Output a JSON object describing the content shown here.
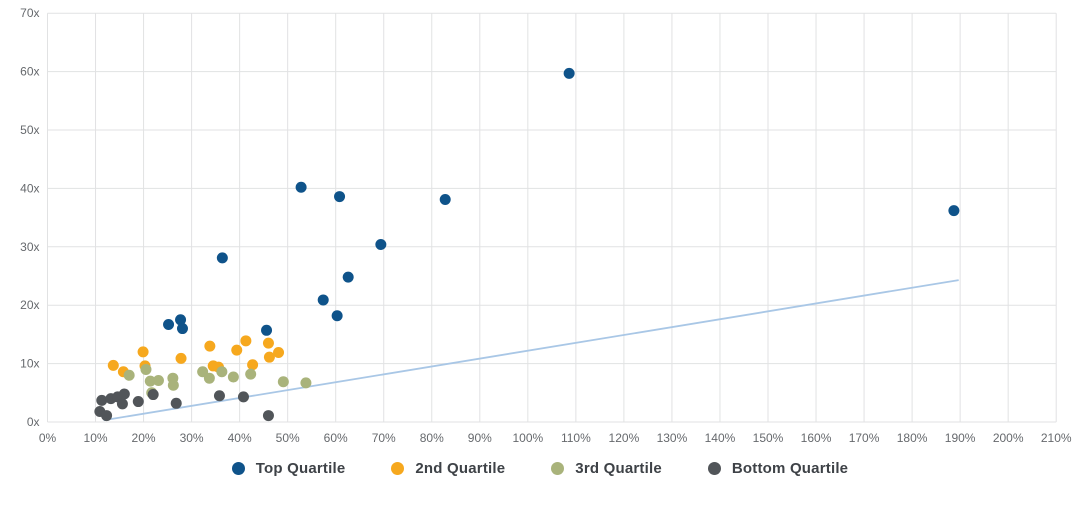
{
  "chart_data": {
    "type": "scatter",
    "title": "",
    "xlabel": "",
    "ylabel": "",
    "grid": true,
    "legend_position": "bottom",
    "x_axis": {
      "min": 0,
      "max": 210,
      "step": 10,
      "unit": "%",
      "tick_labels": [
        "0%",
        "10%",
        "20%",
        "30%",
        "40%",
        "50%",
        "60%",
        "70%",
        "80%",
        "90%",
        "100%",
        "110%",
        "120%",
        "130%",
        "140%",
        "150%",
        "160%",
        "170%",
        "180%",
        "190%",
        "200%",
        "210%"
      ]
    },
    "y_axis": {
      "min": 0,
      "max": 70,
      "step": 10,
      "unit": "x",
      "tick_labels": [
        "0x",
        "10x",
        "20x",
        "30x",
        "40x",
        "50x",
        "60x",
        "70x"
      ]
    },
    "series": [
      {
        "name": "Top Quartile",
        "color": "#0F538A",
        "points": [
          [
            25.2,
            16.7
          ],
          [
            27.7,
            17.5
          ],
          [
            28.1,
            16.0
          ],
          [
            36.4,
            28.1
          ],
          [
            45.6,
            15.7
          ],
          [
            52.8,
            40.2
          ],
          [
            57.4,
            20.9
          ],
          [
            60.3,
            18.2
          ],
          [
            60.8,
            38.6
          ],
          [
            62.6,
            24.8
          ],
          [
            69.4,
            30.4
          ],
          [
            82.8,
            38.1
          ],
          [
            108.6,
            59.7
          ],
          [
            188.7,
            36.2
          ]
        ]
      },
      {
        "name": "2nd Quartile",
        "color": "#F6A81E",
        "points": [
          [
            13.7,
            9.7
          ],
          [
            15.8,
            8.6
          ],
          [
            19.9,
            12.0
          ],
          [
            20.3,
            9.6
          ],
          [
            27.8,
            10.9
          ],
          [
            33.8,
            13.0
          ],
          [
            34.5,
            9.6
          ],
          [
            35.6,
            9.4
          ],
          [
            39.4,
            12.3
          ],
          [
            41.3,
            13.9
          ],
          [
            42.7,
            9.8
          ],
          [
            46.0,
            13.5
          ],
          [
            46.2,
            11.1
          ],
          [
            48.1,
            11.9
          ]
        ]
      },
      {
        "name": "3rd Quartile",
        "color": "#A9B37B",
        "points": [
          [
            17.0,
            8.0
          ],
          [
            20.5,
            9.0
          ],
          [
            21.4,
            7.0
          ],
          [
            21.7,
            5.0
          ],
          [
            23.1,
            7.1
          ],
          [
            26.1,
            7.5
          ],
          [
            26.2,
            6.3
          ],
          [
            32.3,
            8.6
          ],
          [
            33.7,
            7.5
          ],
          [
            36.3,
            8.6
          ],
          [
            38.7,
            7.7
          ],
          [
            42.3,
            8.2
          ],
          [
            49.1,
            6.9
          ],
          [
            53.8,
            6.7
          ]
        ]
      },
      {
        "name": "Bottom Quartile",
        "color": "#515559",
        "points": [
          [
            10.9,
            1.8
          ],
          [
            11.3,
            3.7
          ],
          [
            12.3,
            1.1
          ],
          [
            13.2,
            4.0
          ],
          [
            14.6,
            4.3
          ],
          [
            15.6,
            3.1
          ],
          [
            16.0,
            4.8
          ],
          [
            18.9,
            3.5
          ],
          [
            22.0,
            4.7
          ],
          [
            26.8,
            3.2
          ],
          [
            35.8,
            4.5
          ],
          [
            40.8,
            4.3
          ],
          [
            46.0,
            1.1
          ]
        ]
      }
    ],
    "trendline": {
      "points": [
        [
          11.7,
          0.3
        ],
        [
          189.7,
          24.3
        ]
      ],
      "color": "#A9C7E6"
    },
    "colors": {
      "gridline": "#E1E2E3",
      "axis_text": "#66696d",
      "legend_text": "#3e4247"
    }
  }
}
